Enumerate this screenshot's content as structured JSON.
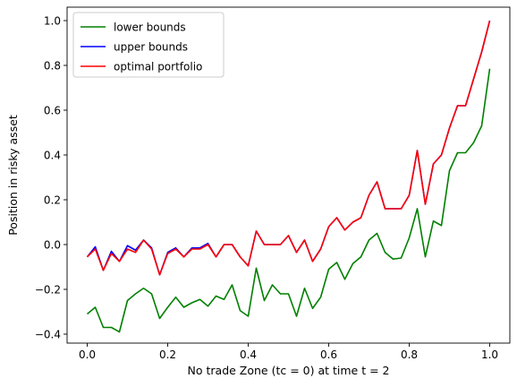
{
  "chart_data": {
    "type": "line",
    "title": "",
    "xlabel": "No trade Zone (tc = 0) at time t = 2",
    "ylabel": "Position in risky asset",
    "xlim": [
      -0.05,
      1.05
    ],
    "ylim": [
      -0.44,
      1.06
    ],
    "xticks": [
      0.0,
      0.2,
      0.4,
      0.6,
      0.8,
      1.0
    ],
    "xtick_labels": [
      "0.0",
      "0.2",
      "0.4",
      "0.6",
      "0.8",
      "1.0"
    ],
    "yticks": [
      -0.4,
      -0.2,
      0.0,
      0.2,
      0.4,
      0.6,
      0.8,
      1.0
    ],
    "ytick_labels": [
      "−0.4",
      "−0.2",
      "0.0",
      "0.2",
      "0.4",
      "0.6",
      "0.8",
      "1.0"
    ],
    "grid": false,
    "legend_position": "top-left",
    "x": [
      0.0,
      0.02,
      0.04,
      0.06,
      0.08,
      0.1,
      0.12,
      0.14,
      0.16,
      0.18,
      0.2,
      0.22,
      0.24,
      0.26,
      0.28,
      0.3,
      0.32,
      0.34,
      0.36,
      0.38,
      0.4,
      0.42,
      0.44,
      0.46,
      0.48,
      0.5,
      0.52,
      0.54,
      0.56,
      0.58,
      0.6,
      0.62,
      0.64,
      0.66,
      0.68,
      0.7,
      0.72,
      0.74,
      0.76,
      0.78,
      0.8,
      0.82,
      0.84,
      0.86,
      0.88,
      0.9,
      0.92,
      0.94,
      0.96,
      0.98,
      1.0
    ],
    "series": [
      {
        "name": "lower bounds",
        "color": "#008000",
        "values": [
          -0.31,
          -0.28,
          -0.37,
          -0.37,
          -0.39,
          -0.25,
          -0.22,
          -0.195,
          -0.22,
          -0.33,
          -0.28,
          -0.235,
          -0.28,
          -0.26,
          -0.245,
          -0.275,
          -0.23,
          -0.245,
          -0.18,
          -0.295,
          -0.32,
          -0.105,
          -0.25,
          -0.18,
          -0.22,
          -0.22,
          -0.32,
          -0.195,
          -0.285,
          -0.235,
          -0.11,
          -0.08,
          -0.155,
          -0.085,
          -0.055,
          0.02,
          0.05,
          -0.035,
          -0.065,
          -0.06,
          0.03,
          0.16,
          -0.055,
          0.105,
          0.085,
          0.33,
          0.41,
          0.41,
          0.455,
          0.53,
          0.785
        ]
      },
      {
        "name": "upper bounds",
        "color": "#0000ff",
        "values": [
          -0.055,
          -0.01,
          -0.115,
          -0.03,
          -0.075,
          -0.005,
          -0.025,
          0.02,
          -0.015,
          -0.135,
          -0.035,
          -0.015,
          -0.055,
          -0.015,
          -0.015,
          0.005,
          -0.055,
          0.0,
          0.0,
          -0.055,
          -0.095,
          0.06,
          0.0,
          0.0,
          0.0,
          0.04,
          -0.035,
          0.02,
          -0.075,
          -0.02,
          0.08,
          0.12,
          0.065,
          0.1,
          0.12,
          0.22,
          0.28,
          0.16,
          0.16,
          0.16,
          0.22,
          0.42,
          0.18,
          0.36,
          0.4,
          0.52,
          0.62,
          0.62,
          0.74,
          0.86,
          1.0
        ]
      },
      {
        "name": "optimal portfolio",
        "color": "#ff0000",
        "values": [
          -0.055,
          -0.02,
          -0.115,
          -0.04,
          -0.075,
          -0.02,
          -0.035,
          0.02,
          -0.02,
          -0.135,
          -0.04,
          -0.02,
          -0.055,
          -0.02,
          -0.02,
          0.0,
          -0.055,
          0.0,
          0.0,
          -0.055,
          -0.095,
          0.06,
          0.0,
          0.0,
          0.0,
          0.04,
          -0.035,
          0.02,
          -0.075,
          -0.02,
          0.08,
          0.12,
          0.065,
          0.1,
          0.12,
          0.22,
          0.28,
          0.16,
          0.16,
          0.16,
          0.22,
          0.42,
          0.18,
          0.36,
          0.4,
          0.52,
          0.62,
          0.62,
          0.74,
          0.86,
          1.0
        ]
      }
    ]
  }
}
